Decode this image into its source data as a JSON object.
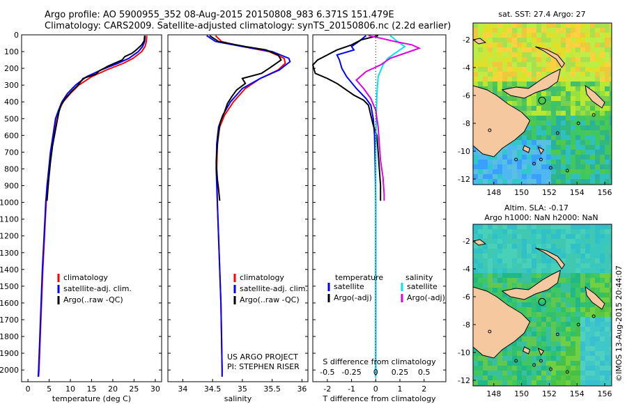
{
  "header": {
    "line1": "Argo profile: AO 5900955_352 08-Aug-2015 20150808_983 6.371S 151.479E",
    "line2": "Climatology: CARS2009. Satellite-adjusted climatology: synTS_20150806.nc (2.2d earlier)"
  },
  "colors": {
    "climatology": "#ff0000",
    "satellite": "#0000ff",
    "argo": "#000000",
    "satellite_s": "#00e5e5",
    "argo_s": "#e000e0",
    "land": "#f5c8a0"
  },
  "panel_notes": {
    "project": "US ARGO PROJECT",
    "pi": "PI: STEPHEN RISER",
    "timestamp": "©IMOS 13-Aug-2015 20:44:07"
  },
  "chart_data": [
    {
      "type": "line",
      "id": "temperature",
      "xlabel": "temperature (deg C)",
      "ylabel": "",
      "xlim": [
        -1.5,
        31.5
      ],
      "xticks": [
        0,
        5,
        10,
        15,
        20,
        25,
        30
      ],
      "ylim": [
        2070,
        0
      ],
      "yticks": [
        0,
        100,
        200,
        300,
        400,
        500,
        600,
        700,
        800,
        900,
        1000,
        1100,
        1200,
        1300,
        1400,
        1500,
        1600,
        1700,
        1800,
        1900,
        2000
      ],
      "legend": [
        "climatology",
        "satellite-adj. clim.",
        "Argo(..raw -QC)"
      ],
      "legend_position": "bottom-left",
      "series": [
        {
          "name": "climatology",
          "color": "#ff0000",
          "points": [
            [
              28.0,
              5
            ],
            [
              27.9,
              40
            ],
            [
              27.6,
              70
            ],
            [
              26.8,
              100
            ],
            [
              24.8,
              140
            ],
            [
              22.5,
              170
            ],
            [
              18.5,
              210
            ],
            [
              15.0,
              250
            ],
            [
              12.0,
              300
            ],
            [
              10.0,
              350
            ],
            [
              8.3,
              400
            ],
            [
              7.3,
              450
            ],
            [
              6.6,
              500
            ],
            [
              6.0,
              600
            ],
            [
              5.4,
              700
            ],
            [
              5.0,
              800
            ],
            [
              4.6,
              900
            ],
            [
              4.3,
              1000
            ],
            [
              3.9,
              1200
            ],
            [
              3.5,
              1400
            ],
            [
              3.2,
              1600
            ],
            [
              2.9,
              1800
            ],
            [
              2.6,
              2000
            ],
            [
              2.5,
              2040
            ]
          ]
        },
        {
          "name": "satellite-adj. clim.",
          "color": "#0000ff",
          "points": [
            [
              27.6,
              5
            ],
            [
              27.5,
              40
            ],
            [
              27.0,
              70
            ],
            [
              26.0,
              100
            ],
            [
              23.8,
              140
            ],
            [
              21.2,
              170
            ],
            [
              17.2,
              210
            ],
            [
              13.8,
              250
            ],
            [
              11.2,
              300
            ],
            [
              9.3,
              350
            ],
            [
              8.0,
              400
            ],
            [
              7.2,
              450
            ],
            [
              6.5,
              500
            ],
            [
              5.9,
              600
            ],
            [
              5.3,
              700
            ],
            [
              4.9,
              800
            ],
            [
              4.5,
              900
            ],
            [
              4.2,
              1000
            ],
            [
              3.8,
              1200
            ],
            [
              3.4,
              1400
            ],
            [
              3.1,
              1600
            ],
            [
              2.8,
              1800
            ],
            [
              2.5,
              2000
            ],
            [
              2.4,
              2040
            ]
          ]
        },
        {
          "name": "Argo(..raw -QC)",
          "color": "#000000",
          "points": [
            [
              27.5,
              5
            ],
            [
              27.4,
              35
            ],
            [
              26.8,
              60
            ],
            [
              25.5,
              90
            ],
            [
              24.5,
              110
            ],
            [
              22.8,
              130
            ],
            [
              22.2,
              150
            ],
            [
              19.0,
              185
            ],
            [
              16.8,
              215
            ],
            [
              16.0,
              235
            ],
            [
              13.0,
              260
            ],
            [
              11.8,
              300
            ],
            [
              10.2,
              340
            ],
            [
              8.8,
              380
            ],
            [
              7.8,
              420
            ],
            [
              7.3,
              460
            ],
            [
              6.9,
              510
            ],
            [
              6.4,
              580
            ],
            [
              5.8,
              660
            ],
            [
              5.3,
              760
            ],
            [
              4.9,
              860
            ],
            [
              4.7,
              920
            ],
            [
              4.5,
              990
            ]
          ]
        }
      ]
    },
    {
      "type": "line",
      "id": "salinity",
      "xlabel": "salinity",
      "xlim": [
        33.75,
        36.1
      ],
      "xticks": [
        34,
        34.5,
        35,
        35.5,
        36
      ],
      "ylim": [
        2070,
        0
      ],
      "legend": [
        "climatology",
        "satellite-adj. clim.",
        "Argo(..raw -QC)"
      ],
      "legend_position": "bottom-left",
      "series": [
        {
          "name": "climatology",
          "color": "#ff0000",
          "points": [
            [
              34.55,
              5
            ],
            [
              34.65,
              40
            ],
            [
              35.0,
              70
            ],
            [
              35.45,
              100
            ],
            [
              35.7,
              140
            ],
            [
              35.72,
              170
            ],
            [
              35.6,
              210
            ],
            [
              35.3,
              260
            ],
            [
              35.05,
              320
            ],
            [
              34.85,
              400
            ],
            [
              34.7,
              480
            ],
            [
              34.62,
              550
            ],
            [
              34.58,
              650
            ],
            [
              34.57,
              800
            ],
            [
              34.58,
              1000
            ],
            [
              34.6,
              1200
            ],
            [
              34.62,
              1400
            ],
            [
              34.64,
              1600
            ],
            [
              34.65,
              1800
            ],
            [
              34.66,
              2000
            ],
            [
              34.66,
              2040
            ]
          ]
        },
        {
          "name": "satellite-adj. clim.",
          "color": "#0000ff",
          "points": [
            [
              34.4,
              5
            ],
            [
              34.55,
              40
            ],
            [
              35.0,
              70
            ],
            [
              35.5,
              100
            ],
            [
              35.78,
              140
            ],
            [
              35.8,
              160
            ],
            [
              35.62,
              210
            ],
            [
              35.3,
              260
            ],
            [
              35.0,
              320
            ],
            [
              34.8,
              400
            ],
            [
              34.67,
              480
            ],
            [
              34.6,
              550
            ],
            [
              34.57,
              650
            ],
            [
              34.56,
              800
            ],
            [
              34.58,
              1000
            ],
            [
              34.6,
              1200
            ],
            [
              34.62,
              1400
            ],
            [
              34.64,
              1600
            ],
            [
              34.65,
              1800
            ],
            [
              34.66,
              2000
            ],
            [
              34.66,
              2040
            ]
          ]
        },
        {
          "name": "Argo(..raw -QC)",
          "color": "#000000",
          "points": [
            [
              34.45,
              5
            ],
            [
              34.6,
              40
            ],
            [
              35.05,
              70
            ],
            [
              35.4,
              90
            ],
            [
              35.6,
              120
            ],
            [
              35.65,
              150
            ],
            [
              35.55,
              175
            ],
            [
              35.45,
              200
            ],
            [
              35.32,
              230
            ],
            [
              35.0,
              260
            ],
            [
              35.05,
              290
            ],
            [
              34.9,
              330
            ],
            [
              34.82,
              370
            ],
            [
              34.75,
              410
            ],
            [
              34.7,
              460
            ],
            [
              34.63,
              520
            ],
            [
              34.6,
              580
            ],
            [
              34.58,
              660
            ],
            [
              34.56,
              760
            ],
            [
              34.58,
              860
            ],
            [
              34.6,
              920
            ],
            [
              34.62,
              990
            ]
          ]
        }
      ]
    },
    {
      "type": "line",
      "id": "difference",
      "xlabel": "T difference from climatology",
      "xlabel_top": "S difference from climatology",
      "xlim": [
        -2.6,
        2.9
      ],
      "xticks": [
        -2,
        -1,
        0,
        1,
        2
      ],
      "xticks_s": [
        "-0.5",
        "-0.25",
        "0",
        "0.25",
        "0.5"
      ],
      "ylim": [
        2070,
        0
      ],
      "legend_headers": [
        "temperature",
        "salinity"
      ],
      "legend": [
        "satellite",
        "Argo(-adj)",
        "satellite",
        "Argo(-adj)"
      ],
      "legend_position": "bottom",
      "series": [
        {
          "name": "satellite",
          "quantity": "temperature",
          "color": "#0000ff",
          "points": [
            [
              -0.4,
              5
            ],
            [
              -0.7,
              40
            ],
            [
              -1.0,
              70
            ],
            [
              -0.9,
              90
            ],
            [
              -1.6,
              120
            ],
            [
              -1.5,
              150
            ],
            [
              -1.4,
              200
            ],
            [
              -1.2,
              250
            ],
            [
              -0.8,
              320
            ],
            [
              -0.4,
              380
            ],
            [
              -0.2,
              420
            ],
            [
              -0.1,
              500
            ],
            [
              -0.05,
              600
            ],
            [
              -0.02,
              800
            ],
            [
              0,
              1000
            ],
            [
              0,
              2040
            ]
          ]
        },
        {
          "name": "Argo(-adj)",
          "quantity": "temperature",
          "color": "#000000",
          "points": [
            [
              0.1,
              5
            ],
            [
              -0.6,
              30
            ],
            [
              -1.0,
              60
            ],
            [
              -1.6,
              90
            ],
            [
              -2.0,
              120
            ],
            [
              -2.4,
              150
            ],
            [
              -2.6,
              180
            ],
            [
              -2.5,
              230
            ],
            [
              -2.0,
              260
            ],
            [
              -1.6,
              290
            ],
            [
              -1.2,
              330
            ],
            [
              -0.9,
              360
            ],
            [
              -0.5,
              390
            ],
            [
              -0.3,
              420
            ],
            [
              -0.2,
              480
            ],
            [
              -0.1,
              540
            ],
            [
              0.05,
              600
            ],
            [
              0.1,
              700
            ],
            [
              0.15,
              800
            ],
            [
              0.2,
              900
            ],
            [
              0.2,
              990
            ]
          ]
        },
        {
          "name": "satellite",
          "quantity": "salinity",
          "color": "#00e5e5",
          "points": [
            [
              0.6,
              5
            ],
            [
              0.9,
              40
            ],
            [
              1.2,
              70
            ],
            [
              0.9,
              100
            ],
            [
              0.5,
              140
            ],
            [
              0.3,
              180
            ],
            [
              0.1,
              250
            ],
            [
              0.05,
              350
            ],
            [
              0.02,
              500
            ],
            [
              0,
              700
            ],
            [
              0,
              1000
            ],
            [
              0,
              2040
            ]
          ]
        },
        {
          "name": "Argo(-adj)",
          "quantity": "salinity",
          "color": "#e000e0",
          "points": [
            [
              -0.3,
              5
            ],
            [
              0.2,
              20
            ],
            [
              0.8,
              40
            ],
            [
              1.5,
              60
            ],
            [
              1.8,
              80
            ],
            [
              1.2,
              110
            ],
            [
              0.6,
              140
            ],
            [
              0.2,
              180
            ],
            [
              -0.4,
              220
            ],
            [
              -0.8,
              270
            ],
            [
              -0.5,
              320
            ],
            [
              -0.2,
              380
            ],
            [
              0,
              450
            ],
            [
              0.1,
              550
            ],
            [
              0.15,
              650
            ],
            [
              0.2,
              750
            ],
            [
              0.3,
              850
            ],
            [
              0.35,
              950
            ],
            [
              0.35,
              990
            ]
          ]
        }
      ]
    },
    {
      "type": "heatmap",
      "id": "sst-map",
      "title": "sat. SST: 27.4  Argo: 27",
      "xlim": [
        146.5,
        156.5
      ],
      "xticks": [
        148,
        150,
        152,
        154,
        156
      ],
      "ylim": [
        -12.4,
        -0.8
      ],
      "yticks": [
        -2,
        -4,
        -6,
        -8,
        -10,
        -12
      ],
      "marker": {
        "lon": 151.479,
        "lat": -6.371
      }
    },
    {
      "type": "heatmap",
      "id": "sla-map",
      "title": "Altim. SLA: -0.17",
      "subtitle": "Argo h1000: NaN h2000: NaN",
      "xlim": [
        146.5,
        156.5
      ],
      "xticks": [
        148,
        150,
        152,
        154,
        156
      ],
      "ylim": [
        -12.4,
        -0.8
      ],
      "yticks": [
        -2,
        -4,
        -6,
        -8,
        -10,
        -12
      ],
      "marker": {
        "lon": 151.479,
        "lat": -6.371
      }
    }
  ]
}
